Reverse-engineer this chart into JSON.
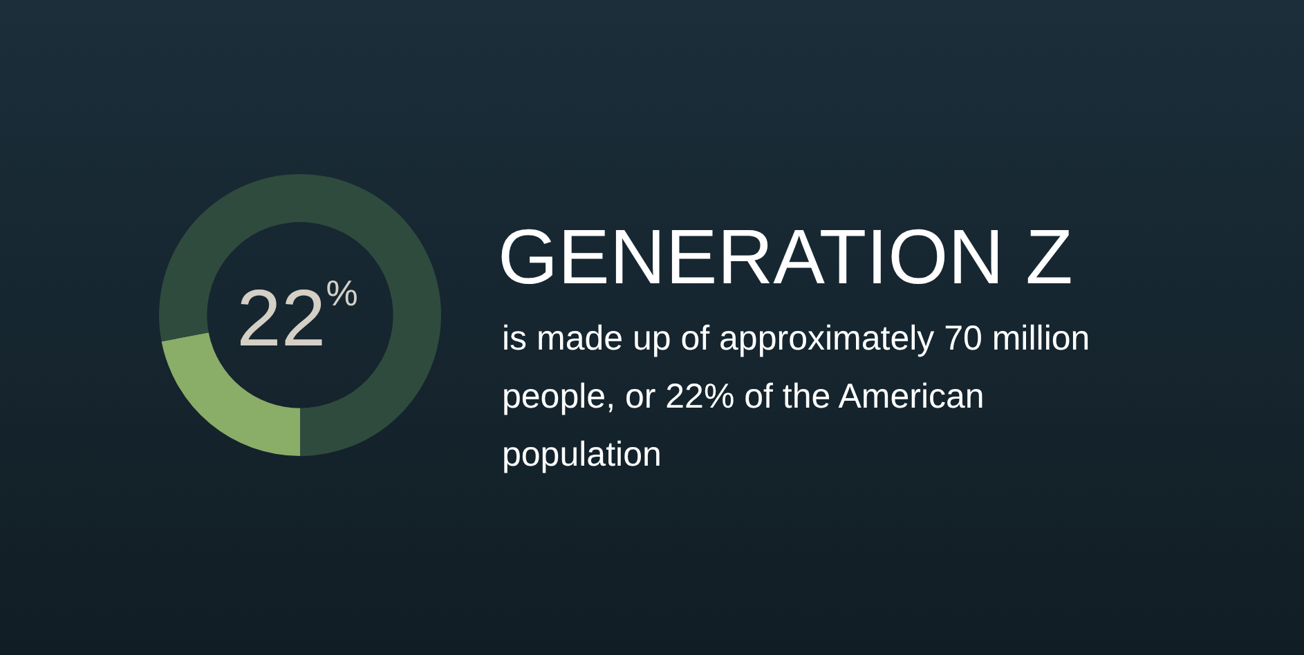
{
  "chart_data": {
    "type": "donut",
    "title": "GENERATION Z",
    "subtitle": "is made up of approximately 70 million people, or 22% of the American population",
    "categories": [
      null,
      null
    ],
    "values": [
      22,
      78
    ],
    "colors": [
      "#8aad68",
      "#2f4b3e"
    ],
    "value_labels": [
      "22$^{%}$",
      null
    ]
  }
}
